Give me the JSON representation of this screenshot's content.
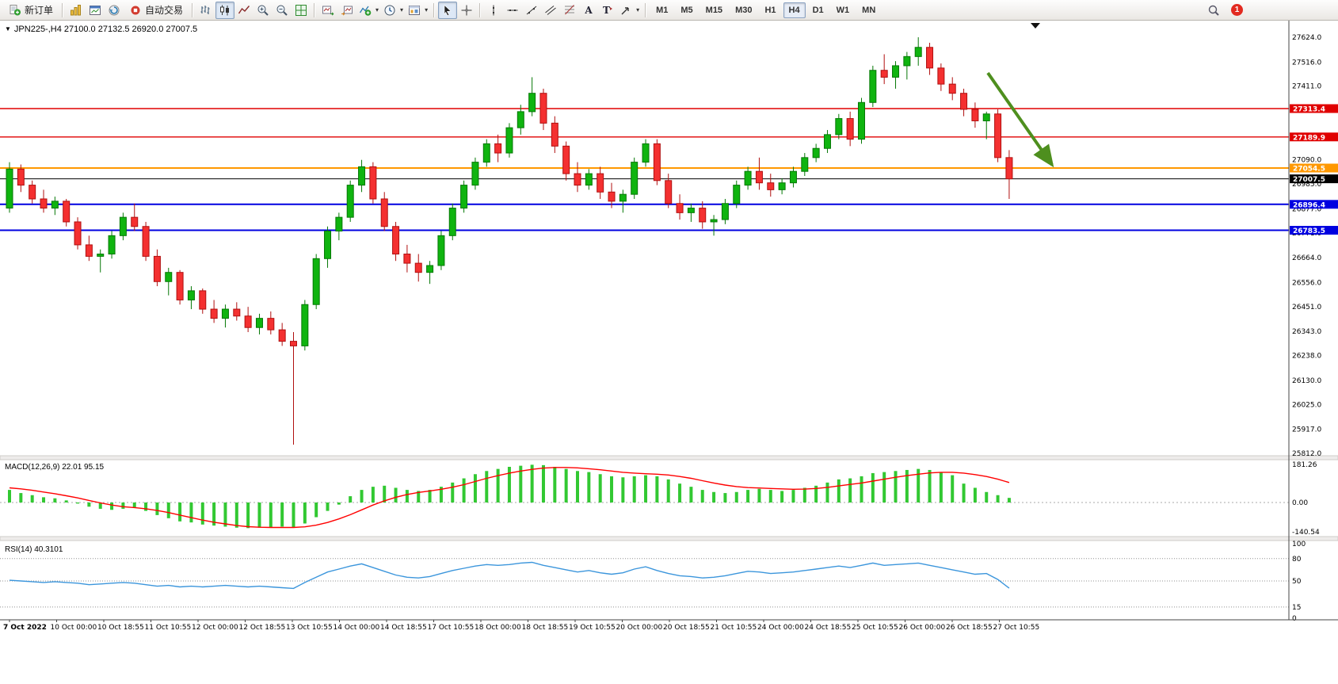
{
  "toolbar": {
    "dropdown_glyph": "▾",
    "new_order_label": "新订单",
    "auto_trading_label": "自动交易",
    "groups": [
      {
        "items": [
          {
            "name": "new-order-button",
            "icon": "new-order",
            "label": "新订单"
          }
        ]
      },
      {
        "items": [
          {
            "name": "charts-button",
            "icon": "charts"
          },
          {
            "name": "new-chart-window-button",
            "icon": "new-window"
          },
          {
            "name": "profiles-button",
            "icon": "profiles"
          },
          {
            "name": "auto-trading-button",
            "icon": "auto-trading",
            "label": "自动交易"
          }
        ]
      },
      {
        "items": [
          {
            "name": "bar-chart-button",
            "icon": "bar-chart"
          },
          {
            "name": "candle-chart-button",
            "icon": "candle-chart",
            "active": true
          },
          {
            "name": "line-chart-button",
            "icon": "line-chart"
          },
          {
            "name": "zoom-in-button",
            "icon": "zoom-in"
          },
          {
            "name": "zoom-out-button",
            "icon": "zoom-out"
          },
          {
            "name": "tile-windows-button",
            "icon": "tile-grid"
          }
        ]
      },
      {
        "items": [
          {
            "name": "auto-scroll-button",
            "icon": "auto-scroll"
          },
          {
            "name": "chart-shift-button",
            "icon": "chart-shift"
          },
          {
            "name": "indicators-button",
            "icon": "indicators",
            "dropdown": true
          },
          {
            "name": "periods-button",
            "icon": "clock",
            "dropdown": true
          },
          {
            "name": "templates-button",
            "icon": "template",
            "dropdown": true
          }
        ]
      },
      {
        "items": [
          {
            "name": "cursor-button",
            "icon": "cursor",
            "active": true
          },
          {
            "name": "crosshair-button",
            "icon": "crosshair"
          }
        ]
      },
      {
        "items": [
          {
            "name": "vertical-line-button",
            "icon": "vline"
          },
          {
            "name": "horizontal-line-button",
            "icon": "hline"
          },
          {
            "name": "trendline-button",
            "icon": "trendline"
          },
          {
            "name": "equidistant-channel-button",
            "icon": "channel"
          },
          {
            "name": "fibonacci-button",
            "icon": "fibonacci"
          },
          {
            "name": "text-button",
            "icon": "text"
          },
          {
            "name": "text-label-button",
            "icon": "label"
          },
          {
            "name": "arrows-button",
            "icon": "arrows",
            "dropdown": true
          }
        ]
      }
    ],
    "timeframes": [
      {
        "label": "M1"
      },
      {
        "label": "M5"
      },
      {
        "label": "M15"
      },
      {
        "label": "M30"
      },
      {
        "label": "H1"
      },
      {
        "label": "H4",
        "active": true
      },
      {
        "label": "D1"
      },
      {
        "label": "W1"
      },
      {
        "label": "MN"
      }
    ],
    "notification_badge": "1"
  },
  "chart": {
    "collapse_icon": "▼",
    "symbol_header": "JPN225-,H4",
    "ohlc_header": "27100.0 27132.5 26920.0 27007.5",
    "macd_header": "MACD(12,26,9) 22.01 95.15",
    "rsi_header": "RSI(14) 40.3101"
  },
  "chart_data": {
    "type": "candlestick",
    "symbol": "JPN225-",
    "timeframe": "H4",
    "current_ohlc": {
      "open": 27100.0,
      "high": 27132.5,
      "low": 26920.0,
      "close": 27007.5
    },
    "colors": {
      "bull": "#0fb40f",
      "bull_border": "#067806",
      "bear": "#f43030",
      "bear_border": "#b01010",
      "macd_hist": "#32c832",
      "macd_signal": "#ff0000",
      "rsi": "#3c96dc",
      "axis_line": "#444444",
      "level_dashed": "#909090"
    },
    "price_axis": {
      "min": 25812.0,
      "max": 27624.0,
      "ticks": [
        27624.0,
        27516.0,
        27411.0,
        27090.0,
        26985.0,
        26877.0,
        26771.0,
        26664.0,
        26556.0,
        26451.0,
        26343.0,
        26238.0,
        26130.0,
        26025.0,
        25917.0,
        25812.0
      ]
    },
    "hlines": [
      {
        "price": 27313.4,
        "color": "#e00000",
        "width": 1.4
      },
      {
        "price": 27189.9,
        "color": "#e00000",
        "width": 1.4
      },
      {
        "price": 27054.5,
        "color": "#ff9800",
        "width": 2
      },
      {
        "price": 27007.5,
        "color": "#000000",
        "width": 1,
        "role": "current-price"
      },
      {
        "price": 26896.4,
        "color": "#0000e0",
        "width": 2
      },
      {
        "price": 26783.5,
        "color": "#0000e0",
        "width": 2
      }
    ],
    "candles": [
      [
        26880,
        27080,
        26860,
        27050
      ],
      [
        27050,
        27070,
        26950,
        26980
      ],
      [
        26980,
        27000,
        26900,
        26920
      ],
      [
        26920,
        26960,
        26860,
        26880
      ],
      [
        26880,
        26930,
        26850,
        26910
      ],
      [
        26910,
        26920,
        26800,
        26820
      ],
      [
        26820,
        26840,
        26700,
        26720
      ],
      [
        26720,
        26760,
        26650,
        26670
      ],
      [
        26670,
        26700,
        26600,
        26680
      ],
      [
        26680,
        26780,
        26660,
        26760
      ],
      [
        26760,
        26860,
        26740,
        26840
      ],
      [
        26840,
        26900,
        26780,
        26800
      ],
      [
        26800,
        26820,
        26650,
        26670
      ],
      [
        26670,
        26700,
        26540,
        26560
      ],
      [
        26560,
        26620,
        26500,
        26600
      ],
      [
        26600,
        26610,
        26460,
        26480
      ],
      [
        26480,
        26540,
        26440,
        26520
      ],
      [
        26520,
        26530,
        26420,
        26440
      ],
      [
        26440,
        26480,
        26380,
        26400
      ],
      [
        26400,
        26460,
        26360,
        26440
      ],
      [
        26440,
        26470,
        26390,
        26410
      ],
      [
        26410,
        26450,
        26340,
        26360
      ],
      [
        26360,
        26420,
        26330,
        26400
      ],
      [
        26400,
        26430,
        26330,
        26350
      ],
      [
        26350,
        26380,
        26280,
        26300
      ],
      [
        26300,
        26340,
        25850,
        26280
      ],
      [
        26280,
        26480,
        26260,
        26460
      ],
      [
        26460,
        26680,
        26440,
        26660
      ],
      [
        26660,
        26800,
        26620,
        26780
      ],
      [
        26780,
        26860,
        26740,
        26840
      ],
      [
        26840,
        27000,
        26820,
        26980
      ],
      [
        26980,
        27090,
        26950,
        27060
      ],
      [
        27060,
        27080,
        26900,
        26920
      ],
      [
        26920,
        26950,
        26780,
        26800
      ],
      [
        26800,
        26820,
        26650,
        26680
      ],
      [
        26680,
        26720,
        26600,
        26640
      ],
      [
        26640,
        26680,
        26560,
        26600
      ],
      [
        26600,
        26650,
        26550,
        26630
      ],
      [
        26630,
        26780,
        26610,
        26760
      ],
      [
        26760,
        26900,
        26740,
        26880
      ],
      [
        26880,
        27000,
        26860,
        26980
      ],
      [
        26980,
        27100,
        26960,
        27080
      ],
      [
        27080,
        27180,
        27060,
        27160
      ],
      [
        27160,
        27200,
        27080,
        27120
      ],
      [
        27120,
        27250,
        27100,
        27230
      ],
      [
        27230,
        27330,
        27200,
        27300
      ],
      [
        27300,
        27450,
        27280,
        27380
      ],
      [
        27380,
        27400,
        27220,
        27250
      ],
      [
        27250,
        27280,
        27120,
        27150
      ],
      [
        27150,
        27170,
        27000,
        27030
      ],
      [
        27030,
        27080,
        26950,
        26980
      ],
      [
        26980,
        27050,
        26960,
        27030
      ],
      [
        27030,
        27060,
        26920,
        26950
      ],
      [
        26950,
        26990,
        26880,
        26910
      ],
      [
        26910,
        26960,
        26860,
        26940
      ],
      [
        26940,
        27100,
        26920,
        27080
      ],
      [
        27080,
        27180,
        27060,
        27160
      ],
      [
        27160,
        27180,
        26980,
        27000
      ],
      [
        27000,
        27030,
        26880,
        26900
      ],
      [
        26900,
        26940,
        26830,
        26860
      ],
      [
        26860,
        26900,
        26820,
        26880
      ],
      [
        26880,
        26910,
        26790,
        26820
      ],
      [
        26820,
        26850,
        26760,
        26830
      ],
      [
        26830,
        26920,
        26810,
        26900
      ],
      [
        26900,
        27000,
        26880,
        26980
      ],
      [
        26980,
        27060,
        26960,
        27040
      ],
      [
        27040,
        27100,
        26960,
        26990
      ],
      [
        26990,
        27030,
        26930,
        26960
      ],
      [
        26960,
        27010,
        26940,
        26990
      ],
      [
        26990,
        27060,
        26970,
        27040
      ],
      [
        27040,
        27120,
        27020,
        27100
      ],
      [
        27100,
        27160,
        27080,
        27140
      ],
      [
        27140,
        27220,
        27120,
        27200
      ],
      [
        27200,
        27290,
        27180,
        27270
      ],
      [
        27270,
        27300,
        27150,
        27180
      ],
      [
        27180,
        27360,
        27160,
        27340
      ],
      [
        27340,
        27500,
        27320,
        27480
      ],
      [
        27480,
        27550,
        27420,
        27450
      ],
      [
        27450,
        27520,
        27400,
        27500
      ],
      [
        27500,
        27560,
        27440,
        27540
      ],
      [
        27540,
        27624,
        27500,
        27580
      ],
      [
        27580,
        27600,
        27460,
        27490
      ],
      [
        27490,
        27510,
        27390,
        27420
      ],
      [
        27420,
        27450,
        27350,
        27380
      ],
      [
        27380,
        27400,
        27280,
        27310
      ],
      [
        27310,
        27340,
        27230,
        27260
      ],
      [
        27260,
        27300,
        27180,
        27290
      ],
      [
        27290,
        27310,
        27080,
        27100
      ],
      [
        27100,
        27132.5,
        26920,
        27007.5
      ]
    ],
    "macd": {
      "label": "MACD(12,26,9)",
      "value_main": 22.01,
      "value_signal": 95.15,
      "axis_max": 181.26,
      "axis_zero": 0.0,
      "axis_min": -140.54,
      "histogram": [
        60,
        45,
        35,
        25,
        20,
        10,
        -5,
        -20,
        -30,
        -35,
        -30,
        -25,
        -40,
        -60,
        -75,
        -90,
        -95,
        -105,
        -110,
        -115,
        -120,
        -122,
        -120,
        -118,
        -115,
        -120,
        -100,
        -70,
        -40,
        -10,
        30,
        60,
        75,
        80,
        70,
        60,
        55,
        60,
        75,
        95,
        115,
        135,
        150,
        160,
        170,
        175,
        180,
        178,
        170,
        160,
        150,
        145,
        135,
        125,
        120,
        125,
        130,
        125,
        110,
        90,
        75,
        60,
        50,
        45,
        50,
        60,
        65,
        60,
        55,
        60,
        70,
        80,
        95,
        110,
        115,
        125,
        140,
        145,
        150,
        155,
        160,
        155,
        145,
        130,
        90,
        70,
        50,
        35,
        22
      ],
      "signal": [
        70,
        65,
        58,
        50,
        42,
        32,
        22,
        10,
        -2,
        -12,
        -20,
        -24,
        -30,
        -38,
        -48,
        -60,
        -72,
        -84,
        -94,
        -102,
        -110,
        -115,
        -118,
        -119,
        -119,
        -119,
        -116,
        -108,
        -95,
        -78,
        -58,
        -35,
        -12,
        8,
        25,
        38,
        48,
        55,
        63,
        73,
        85,
        100,
        115,
        128,
        140,
        150,
        158,
        164,
        167,
        167,
        165,
        161,
        156,
        150,
        144,
        140,
        137,
        135,
        131,
        124,
        115,
        104,
        93,
        83,
        76,
        71,
        69,
        67,
        65,
        63,
        64,
        67,
        72,
        79,
        86,
        93,
        102,
        111,
        120,
        128,
        135,
        141,
        144,
        144,
        140,
        133,
        124,
        111,
        95
      ]
    },
    "rsi": {
      "label": "RSI(14)",
      "value": 40.3101,
      "axis_ticks": [
        100,
        80,
        50,
        15,
        0
      ],
      "levels": [
        80,
        50,
        15
      ],
      "values": [
        51,
        50,
        49,
        48,
        49,
        48,
        47,
        45,
        46,
        47,
        48,
        47,
        45,
        43,
        44,
        42,
        43,
        42,
        43,
        44,
        43,
        42,
        43,
        42,
        41,
        40,
        48,
        55,
        62,
        66,
        70,
        73,
        68,
        63,
        58,
        55,
        54,
        56,
        60,
        64,
        67,
        70,
        72,
        71,
        72,
        74,
        75,
        71,
        68,
        65,
        62,
        64,
        61,
        59,
        61,
        66,
        69,
        64,
        60,
        57,
        56,
        54,
        55,
        57,
        60,
        63,
        62,
        60,
        61,
        62,
        64,
        66,
        68,
        70,
        68,
        71,
        74,
        71,
        72,
        73,
        74,
        71,
        68,
        65,
        62,
        59,
        60,
        52,
        40.31
      ]
    },
    "time_axis": [
      "7 Oct 2022",
      "10 Oct 00:00",
      "10 Oct 18:55",
      "11 Oct 10:55",
      "12 Oct 00:00",
      "12 Oct 18:55",
      "13 Oct 10:55",
      "14 Oct 00:00",
      "14 Oct 18:55",
      "17 Oct 10:55",
      "18 Oct 00:00",
      "18 Oct 18:55",
      "19 Oct 10:55",
      "20 Oct 00:00",
      "20 Oct 18:55",
      "21 Oct 10:55",
      "24 Oct 00:00",
      "24 Oct 18:55",
      "25 Oct 10:55",
      "26 Oct 00:00",
      "26 Oct 18:55",
      "27 Oct 10:55"
    ],
    "annotation_arrow": {
      "color": "#4e8f1e",
      "from_price": 27560,
      "to_price": 27090,
      "direction": "down-right"
    }
  }
}
